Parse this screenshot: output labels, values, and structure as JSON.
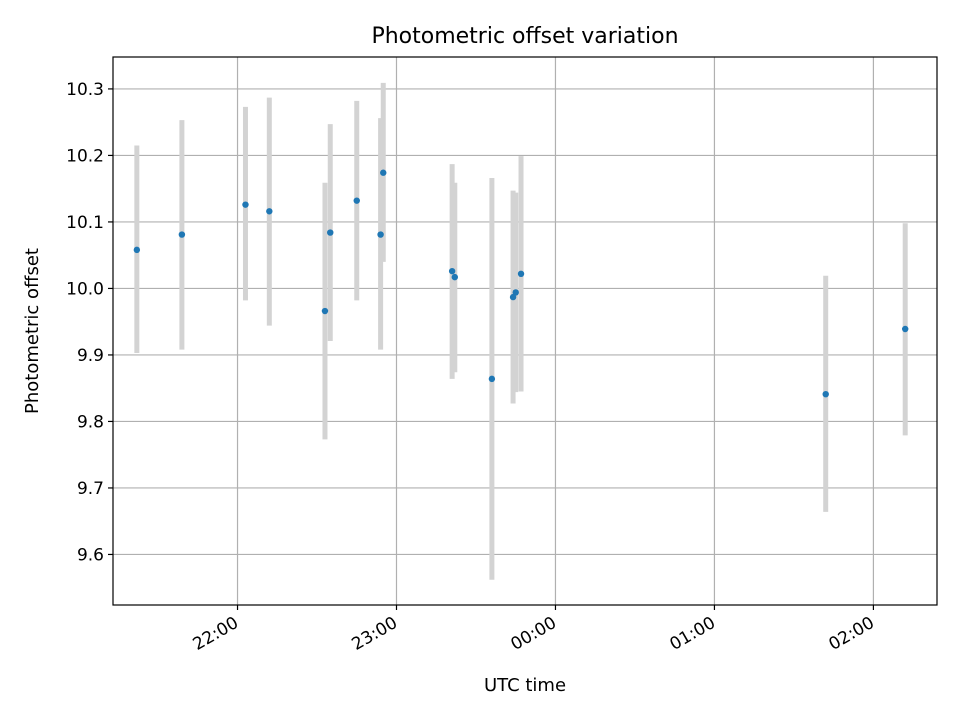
{
  "chart_data": {
    "type": "scatter",
    "title": "Photometric offset variation",
    "xlabel": "UTC time",
    "ylabel": "Photometric offset",
    "x_unit": "UTC time (HH:MM); times after 24:00 fall on the next day",
    "xlim": [
      "21:13",
      "02:24"
    ],
    "ylim": [
      9.524,
      10.348
    ],
    "x_ticks": [
      "22:00",
      "23:00",
      "00:00",
      "01:00",
      "02:00"
    ],
    "y_ticks": [
      "9.6",
      "9.7",
      "9.8",
      "9.9",
      "10.0",
      "10.1",
      "10.2",
      "10.3"
    ],
    "grid": true,
    "legend": "none",
    "colors": {
      "point": "#1f77b4",
      "errorbar": "#d3d3d3",
      "grid": "#b0b0b0"
    },
    "series": [
      {
        "points": [
          {
            "x": "21:22",
            "y": 10.058,
            "err_low": 9.903,
            "err_high": 10.215
          },
          {
            "x": "21:39",
            "y": 10.081,
            "err_low": 9.908,
            "err_high": 10.253
          },
          {
            "x": "22:03",
            "y": 10.126,
            "err_low": 9.982,
            "err_high": 10.273
          },
          {
            "x": "22:12",
            "y": 10.116,
            "err_low": 9.944,
            "err_high": 10.287
          },
          {
            "x": "22:33",
            "y": 9.966,
            "err_low": 9.773,
            "err_high": 10.159
          },
          {
            "x": "22:35",
            "y": 10.084,
            "err_low": 9.921,
            "err_high": 10.247
          },
          {
            "x": "22:45",
            "y": 10.132,
            "err_low": 9.982,
            "err_high": 10.282
          },
          {
            "x": "22:54",
            "y": 10.081,
            "err_low": 9.908,
            "err_high": 10.256
          },
          {
            "x": "22:55",
            "y": 10.174,
            "err_low": 10.04,
            "err_high": 10.309
          },
          {
            "x": "23:21",
            "y": 10.026,
            "err_low": 9.864,
            "err_high": 10.187
          },
          {
            "x": "23:22",
            "y": 10.017,
            "err_low": 9.874,
            "err_high": 10.159
          },
          {
            "x": "23:36",
            "y": 9.864,
            "err_low": 9.562,
            "err_high": 10.166
          },
          {
            "x": "23:44",
            "y": 9.987,
            "err_low": 9.827,
            "err_high": 10.147
          },
          {
            "x": "23:45",
            "y": 9.994,
            "err_low": 9.844,
            "err_high": 10.144
          },
          {
            "x": "23:47",
            "y": 10.022,
            "err_low": 9.845,
            "err_high": 10.199
          },
          {
            "x": "01:42",
            "y": 9.841,
            "err_low": 9.664,
            "err_high": 10.019
          },
          {
            "x": "02:12",
            "y": 9.939,
            "err_low": 9.779,
            "err_high": 10.098
          }
        ]
      }
    ]
  }
}
